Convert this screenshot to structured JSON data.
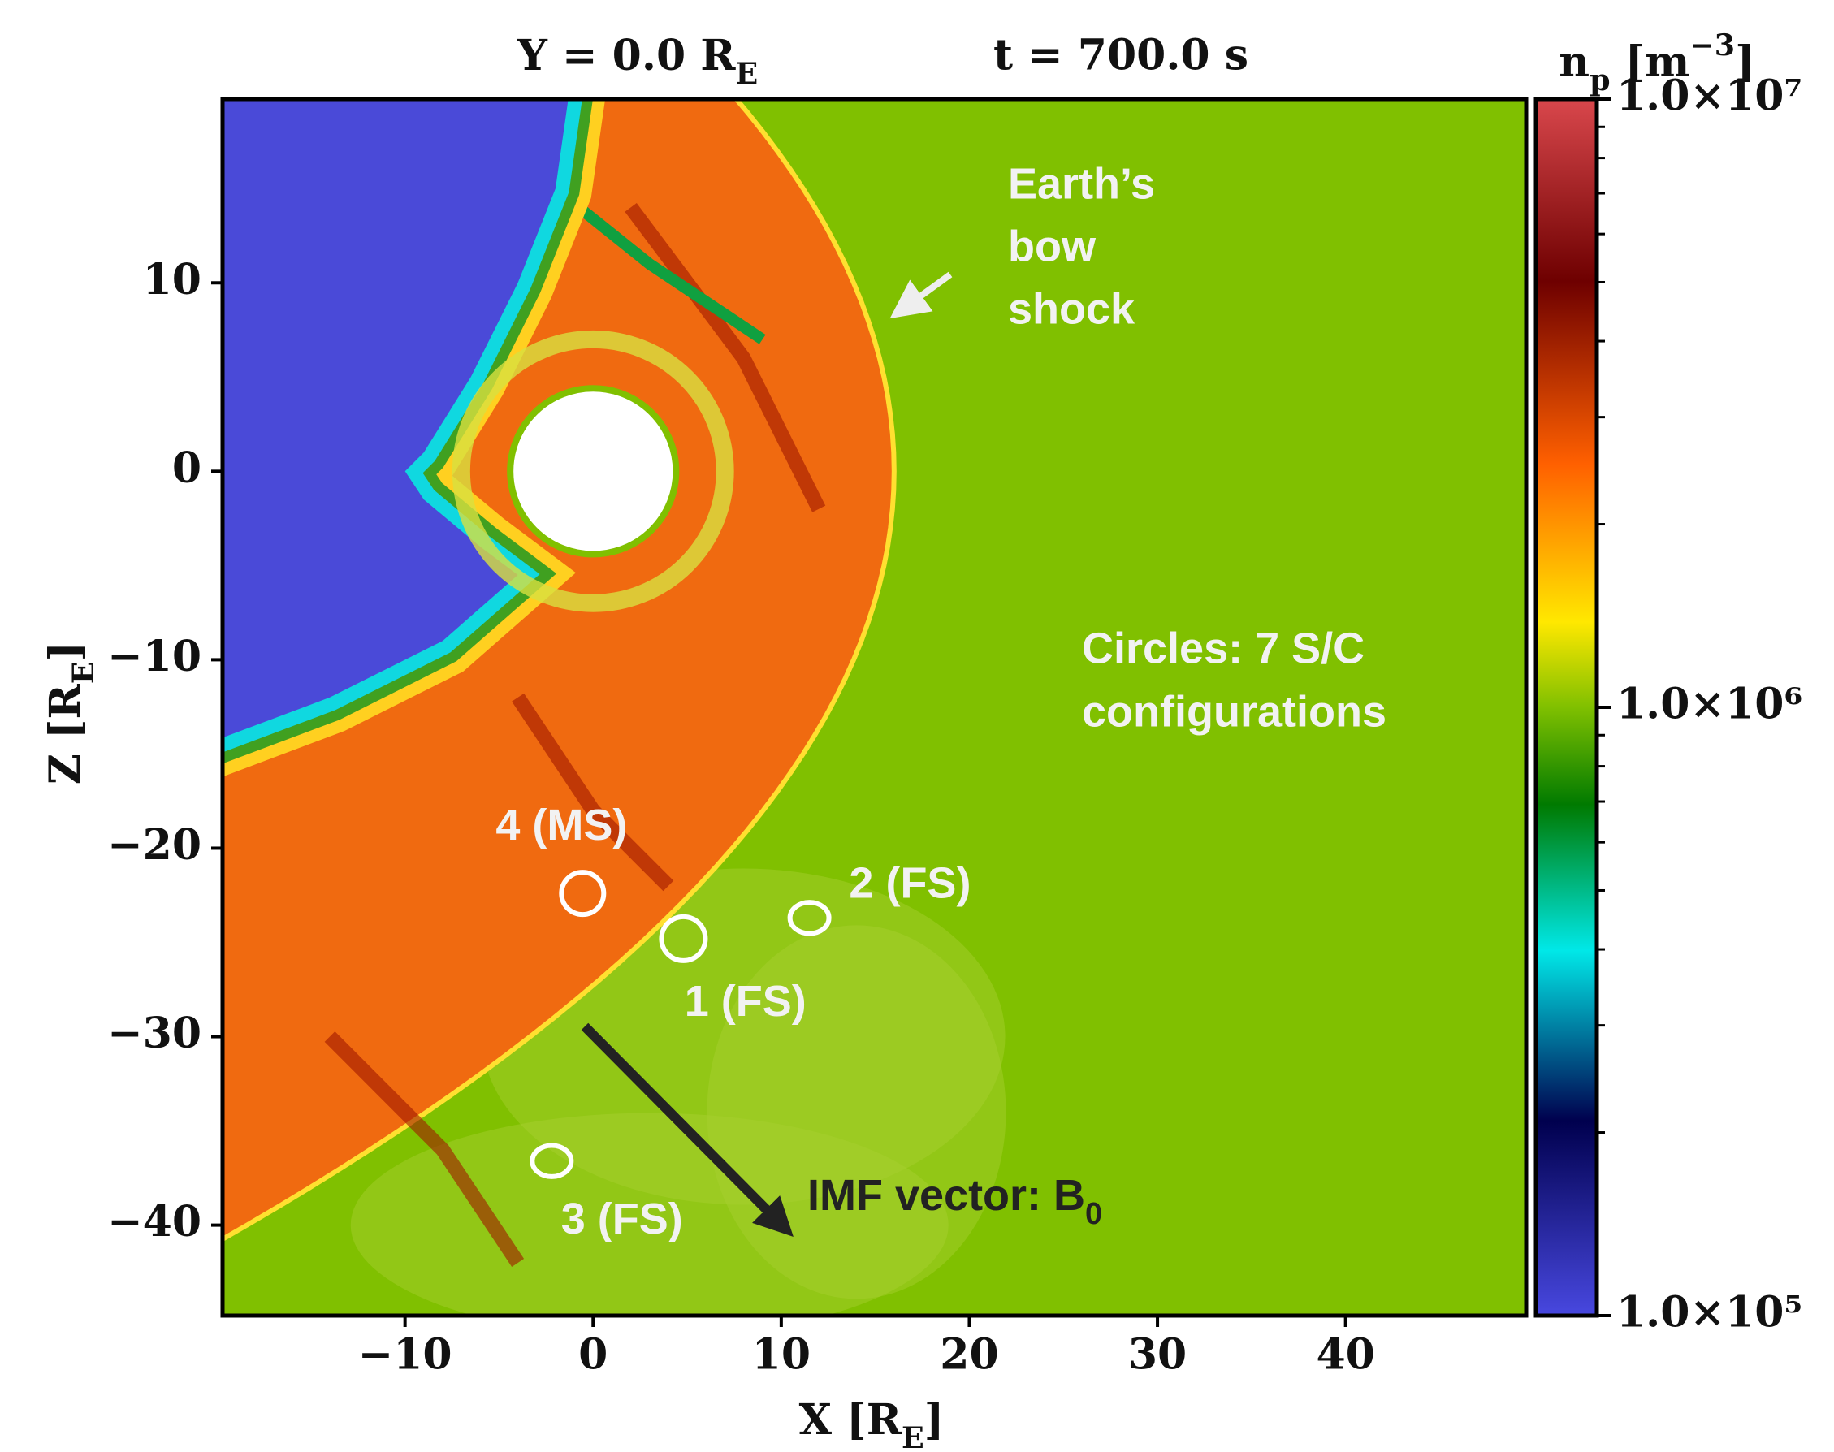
{
  "chart_data": {
    "type": "heatmap",
    "title": {
      "left": [
        "Y = 0.0 R",
        "E"
      ],
      "right": "t = 700.0 s"
    },
    "xlabel": [
      "X [R",
      "E",
      "]"
    ],
    "ylabel": [
      "Z [R",
      "E",
      "]"
    ],
    "xlim": [
      -19.7,
      49.6
    ],
    "ylim": [
      -44.8,
      19.75
    ],
    "xticks": [
      {
        "value": -10,
        "label": "−10"
      },
      0,
      10,
      20,
      30,
      40
    ],
    "yticks": [
      {
        "value": -40,
        "label": "−40"
      },
      {
        "value": -30,
        "label": "−30"
      },
      {
        "value": -20,
        "label": "−20"
      },
      {
        "value": -10,
        "label": "−10"
      },
      0,
      10
    ],
    "colorbar": {
      "label": [
        "n",
        "p",
        " [m",
        "−3",
        "]"
      ],
      "scale": "log",
      "lim": [
        100000,
        10000000
      ],
      "ticks": [
        {
          "value": 100000,
          "label": "1.0×10⁵"
        },
        {
          "value": 1000000,
          "label": "1.0×10⁶"
        },
        {
          "value": 10000000,
          "label": "1.0×10⁷"
        }
      ],
      "minor_ticks": [
        200000,
        300000,
        400000,
        500000,
        600000,
        700000,
        800000,
        900000,
        2000000,
        3000000,
        4000000,
        5000000,
        6000000,
        7000000,
        8000000,
        9000000
      ]
    },
    "bow_shock_label": [
      "Earth’s",
      "bow",
      "shock"
    ],
    "circles_label": [
      "Circles: 7 S/C",
      "configurations"
    ],
    "imf_label": [
      "IMF vector: B",
      "0"
    ],
    "spacecraft": [
      {
        "label": "4 (MS)",
        "x": -0.56,
        "z": -22.4
      },
      {
        "label": "1 (FS)",
        "x": 4.8,
        "z": -24.8
      },
      {
        "label": "2 (FS)",
        "x": 11.5,
        "z": -23.7
      },
      {
        "label": "3 (FS)",
        "x": -2.2,
        "z": -36.6
      }
    ]
  }
}
